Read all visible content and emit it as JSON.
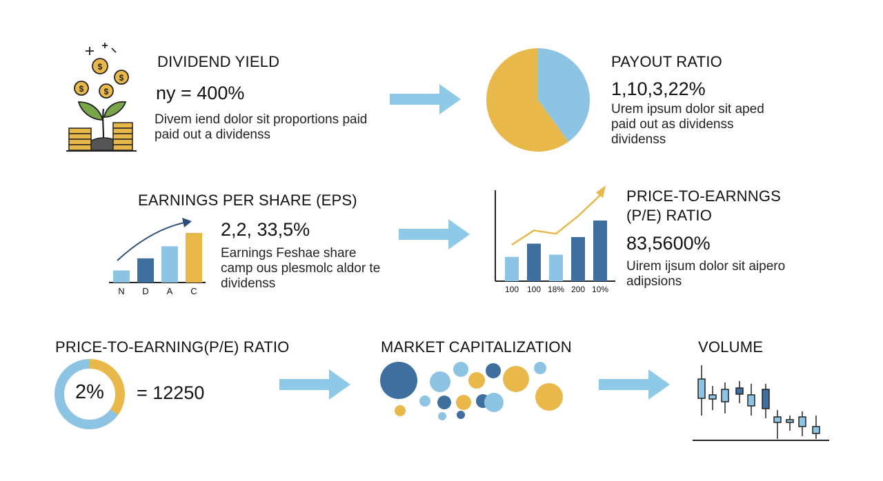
{
  "colors": {
    "gold": "#e8b84a",
    "light_blue": "#8ec4e3",
    "dark_blue": "#3f6f9e",
    "arrow": "#8ec9e8",
    "green_leaf": "#7aa64a",
    "ink": "#111111"
  },
  "dividend_yield": {
    "heading": "DIVIDEND YIELD",
    "value": "ny = 400%",
    "description": "Divem iend dolor sit proportions paid\npaid out a dividenss",
    "icon": "money-plant-icon"
  },
  "payout_ratio": {
    "heading": "PAYOUT RATIO",
    "value": "1,10,3,22%",
    "description": "Urem ipsum dolor sit aped\npaid out as dividenss\ndividenss"
  },
  "eps": {
    "heading": "EARNINGS PER SHARE (EPS)",
    "value": "2,2, 33,5%",
    "description": "Earnings Feshae share\ncamp ous plesmolc aldor te\ndividenss"
  },
  "pe_ratio_chart": {
    "heading_line1": "PRICE-TO-EARNNGS",
    "heading_line2": "(P/E) RATIO",
    "value": "83,5600%",
    "description": "Uirem ijsum dolor sit aipero\nadipsions"
  },
  "pe_ratio_donut": {
    "heading": "PRICE-TO-EARNING(P/E) RATIO",
    "center_label": "2%",
    "value": "= 12250"
  },
  "market_cap": {
    "heading": "MARKET CAPITALIZATION",
    "icon": "bubble-cluster-icon"
  },
  "volume": {
    "heading": "VOLUME",
    "icon": "candlestick-icon"
  },
  "chart_data": [
    {
      "type": "pie",
      "labels": [
        "",
        ""
      ],
      "values": [
        60,
        40
      ],
      "colors": [
        "#e8b84a",
        "#8ec4e3"
      ]
    },
    {
      "type": "bar",
      "categories": [
        "N",
        "D",
        "A",
        "C"
      ],
      "values": [
        2,
        4,
        6,
        8.2
      ],
      "colors": [
        "#8ec4e3",
        "#3f6f9e",
        "#8ec4e3",
        "#e8b84a"
      ],
      "trend": "up"
    },
    {
      "type": "bar",
      "categories": [
        "100",
        "100",
        "18%",
        "200",
        "10%"
      ],
      "values": [
        2.2,
        3.4,
        2.4,
        4.0,
        5.5
      ],
      "colors": [
        "#8ec4e3",
        "#3f6f9e",
        "#8ec4e3",
        "#3f6f9e",
        "#3f6f9e"
      ],
      "trend_line": [
        3.3,
        4.6,
        4.3,
        5.9,
        7.8
      ]
    },
    {
      "type": "pie",
      "labels": [
        "",
        ""
      ],
      "values": [
        35,
        65
      ],
      "colors": [
        "#e8b84a",
        "#8ec4e3"
      ],
      "style": "donut"
    }
  ]
}
